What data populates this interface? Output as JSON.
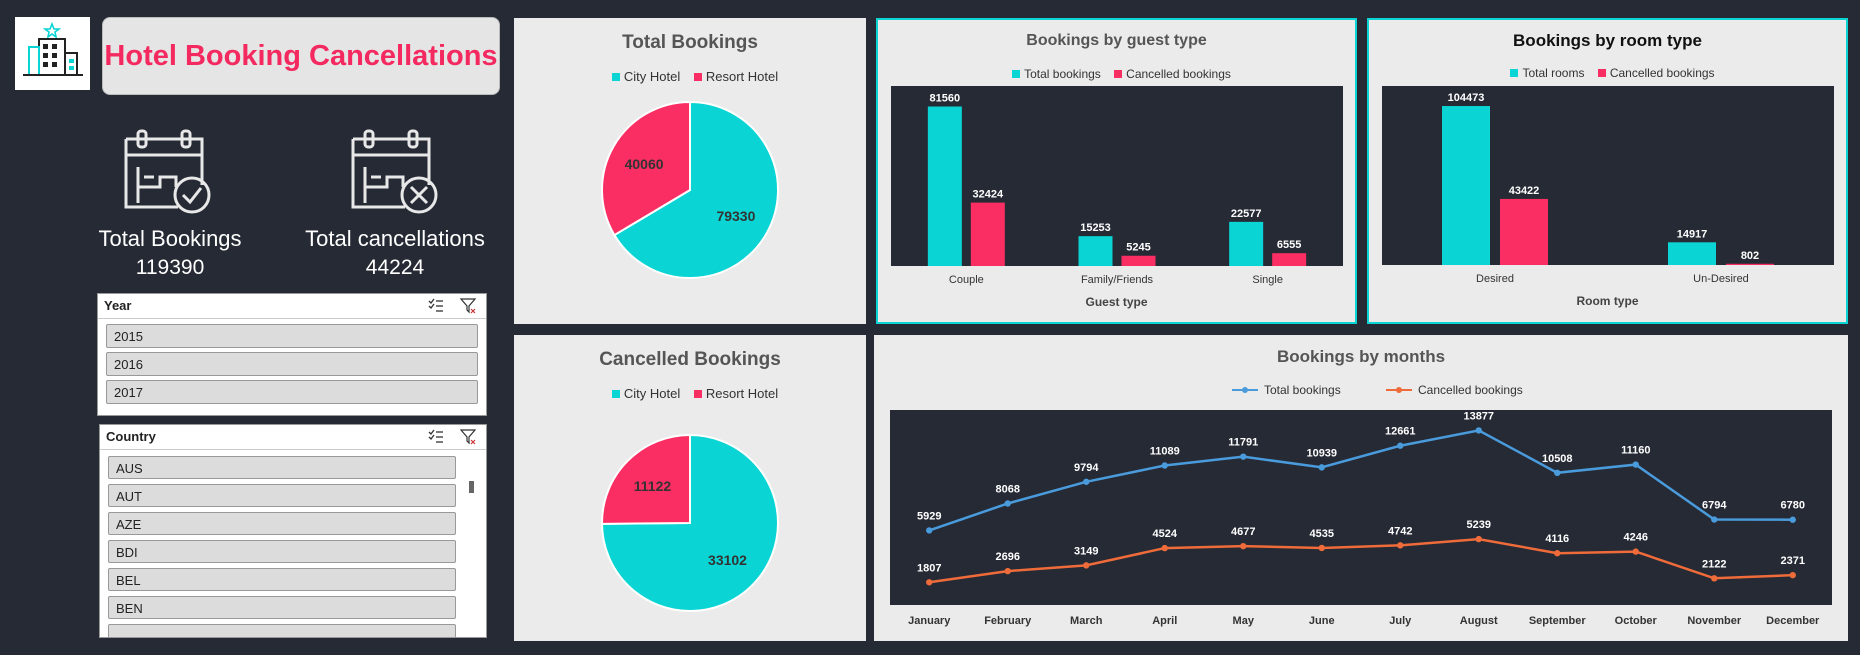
{
  "header": {
    "title": "Hotel Booking Cancellations",
    "logo_icon": "hotel-building-icon"
  },
  "kpis": [
    {
      "label": "Total Bookings",
      "value": "119390",
      "icon": "calendar-check-icon"
    },
    {
      "label": "Total cancellations",
      "value": "44224",
      "icon": "calendar-x-icon"
    }
  ],
  "slicers": {
    "year": {
      "title": "Year",
      "items": [
        "2015",
        "2016",
        "2017"
      ]
    },
    "country": {
      "title": "Country",
      "items": [
        "AUS",
        "AUT",
        "AZE",
        "BDI",
        "BEL",
        "BEN"
      ]
    }
  },
  "colors": {
    "teal": "#0ad4d4",
    "pink": "#fa2e62",
    "blue": "#4a9bdc",
    "orange": "#ef6b3a",
    "dark": "#252a35"
  },
  "chart_data": [
    {
      "id": "total-bookings",
      "type": "pie",
      "title": "Total Bookings",
      "categories": [
        "City Hotel",
        "Resort Hotel"
      ],
      "values": [
        79330,
        40060
      ],
      "legend": "top"
    },
    {
      "id": "cancelled-bookings",
      "type": "pie",
      "title": "Cancelled Bookings",
      "categories": [
        "City Hotel",
        "Resort Hotel"
      ],
      "values": [
        33102,
        11122
      ],
      "legend": "top"
    },
    {
      "id": "guest-type",
      "type": "bar",
      "title": "Bookings by guest type",
      "categories": [
        "Couple",
        "Family/Friends",
        "Single"
      ],
      "xlabel": "Guest type",
      "series": [
        {
          "name": "Total bookings",
          "values": [
            81560,
            15253,
            22577
          ]
        },
        {
          "name": "Cancelled bookings",
          "values": [
            32424,
            5245,
            6555
          ]
        }
      ],
      "ylim": [
        0,
        90000
      ],
      "grid": false,
      "legend": "top"
    },
    {
      "id": "room-type",
      "type": "bar",
      "title": "Bookings by room type",
      "categories": [
        "Desired",
        "Un-Desired"
      ],
      "xlabel": "Room type",
      "series": [
        {
          "name": "Total rooms",
          "values": [
            104473,
            14917
          ]
        },
        {
          "name": "Cancelled bookings",
          "values": [
            43422,
            802
          ]
        }
      ],
      "ylim": [
        0,
        115000
      ],
      "grid": false,
      "legend": "top"
    },
    {
      "id": "months",
      "type": "line",
      "title": "Bookings by months",
      "categories": [
        "January",
        "February",
        "March",
        "April",
        "May",
        "June",
        "July",
        "August",
        "September",
        "October",
        "November",
        "December"
      ],
      "series": [
        {
          "name": "Total bookings",
          "values": [
            5929,
            8068,
            9794,
            11089,
            11791,
            10939,
            12661,
            13877,
            10508,
            11160,
            6794,
            6780
          ]
        },
        {
          "name": "Cancelled bookings",
          "values": [
            1807,
            2696,
            3149,
            4524,
            4677,
            4535,
            4742,
            5239,
            4116,
            4246,
            2122,
            2371
          ]
        }
      ],
      "ylim": [
        0,
        15500
      ],
      "grid": false,
      "legend": "top"
    }
  ]
}
